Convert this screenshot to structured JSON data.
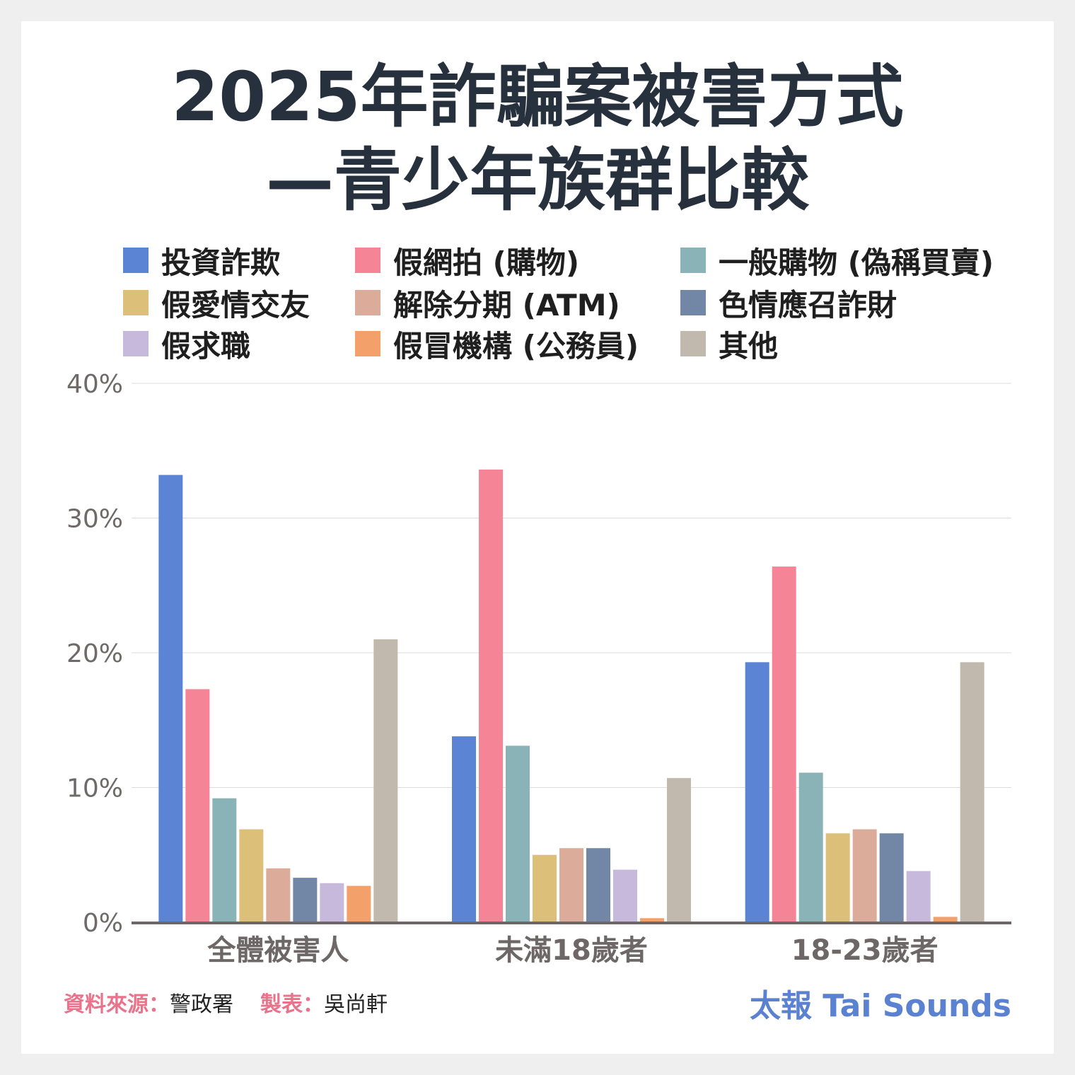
{
  "title": {
    "line1": "2025年詐騙案被害方式",
    "line2": "—青少年族群比較"
  },
  "footer": {
    "source_label": "資料來源：",
    "source_value": "警政署",
    "author_label": "製表：",
    "author_value": "吳尚軒",
    "brand": "太報 Tai Sounds"
  },
  "chart_data": {
    "type": "bar",
    "title": "2025年詐騙案被害方式—青少年族群比較",
    "categories": [
      "全體被害人",
      "未滿18歲者",
      "18-23歲者"
    ],
    "ylim": [
      0,
      40
    ],
    "yticks": [
      "0%",
      "10%",
      "20%",
      "30%",
      "40%"
    ],
    "grid": true,
    "legend_position": "top",
    "series": [
      {
        "name": "投資詐欺",
        "color": "#5b84d4",
        "values": [
          33.2,
          13.8,
          19.3
        ]
      },
      {
        "name": "假網拍 (購物)",
        "color": "#f68497",
        "values": [
          17.3,
          33.6,
          26.4
        ]
      },
      {
        "name": "一般購物 (偽稱買賣)",
        "color": "#8ab3b8",
        "values": [
          9.2,
          13.1,
          11.1
        ]
      },
      {
        "name": "假愛情交友",
        "color": "#dcc07a",
        "values": [
          6.9,
          5.0,
          6.6
        ]
      },
      {
        "name": "解除分期 (ATM)",
        "color": "#dcac9b",
        "values": [
          4.0,
          5.5,
          6.9
        ]
      },
      {
        "name": "色情應召詐財",
        "color": "#7287a6",
        "values": [
          3.3,
          5.5,
          6.6
        ]
      },
      {
        "name": "假求職",
        "color": "#c6b9dc",
        "values": [
          2.9,
          3.9,
          3.8
        ]
      },
      {
        "name": "假冒機構 (公務員)",
        "color": "#f4a06a",
        "values": [
          2.7,
          0.3,
          0.4
        ]
      },
      {
        "name": "其他",
        "color": "#c1b9ad",
        "values": [
          21.0,
          10.7,
          19.3
        ]
      }
    ]
  }
}
